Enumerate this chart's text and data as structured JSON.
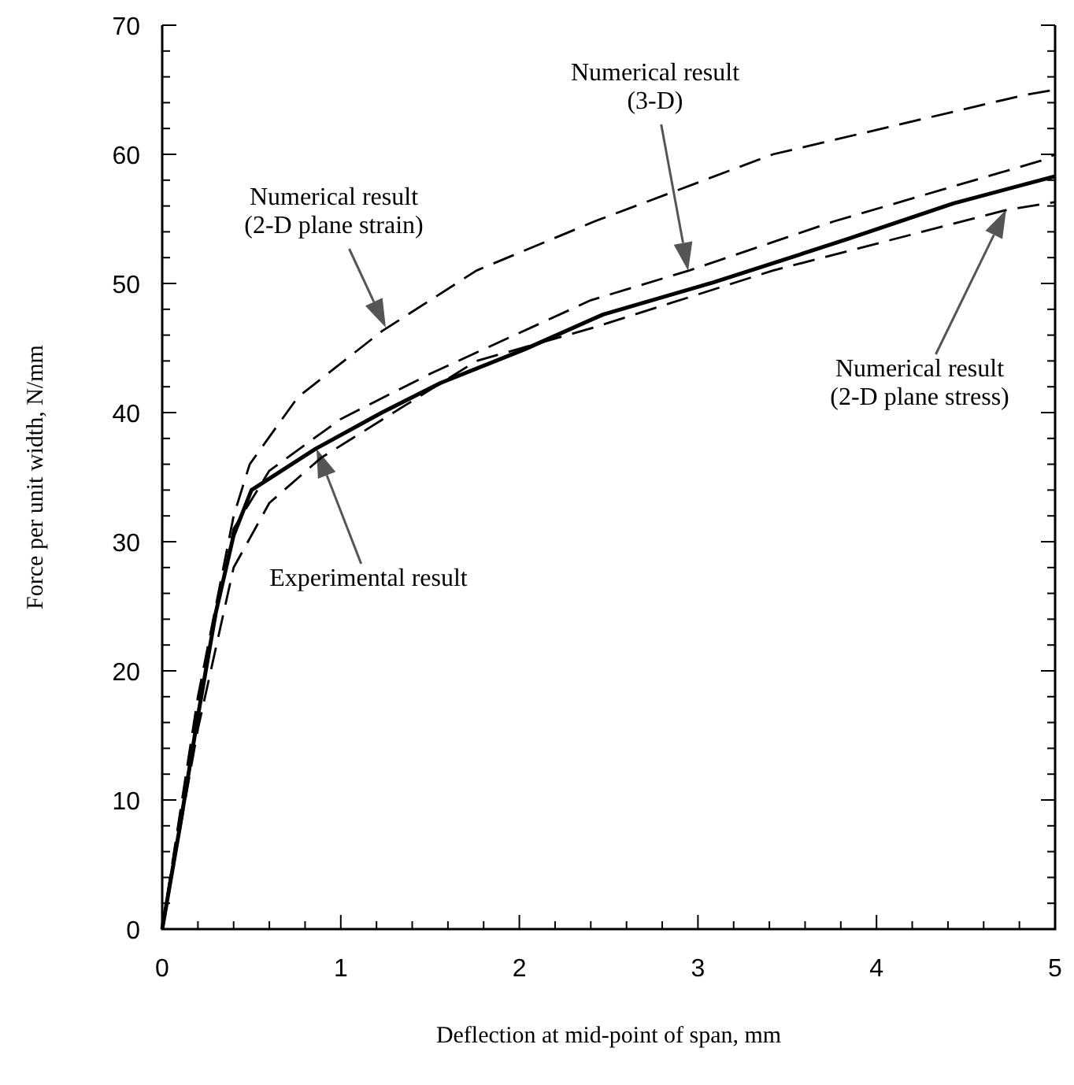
{
  "chart_data": {
    "type": "line",
    "xlabel": "Deflection at mid-point of span,  mm",
    "ylabel": "Force per unit width,  N/mm",
    "xlim": [
      0,
      5
    ],
    "ylim": [
      0,
      70
    ],
    "xticks": [
      0,
      {
        "value": 0.2,
        "label": null
      },
      {
        "value": 0.4,
        "label": null
      },
      {
        "value": 0.6,
        "label": null
      },
      {
        "value": 0.8,
        "label": null
      },
      1,
      {
        "value": 1.2,
        "label": null
      },
      {
        "value": 1.4,
        "label": null
      },
      {
        "value": 1.6,
        "label": null
      },
      {
        "value": 1.8,
        "label": null
      },
      2,
      {
        "value": 2.2,
        "label": null
      },
      {
        "value": 2.4,
        "label": null
      },
      {
        "value": 2.6,
        "label": null
      },
      {
        "value": 2.8,
        "label": null
      },
      3,
      {
        "value": 3.2,
        "label": null
      },
      {
        "value": 3.4,
        "label": null
      },
      {
        "value": 3.6,
        "label": null
      },
      {
        "value": 3.8,
        "label": null
      },
      4,
      {
        "value": 4.2,
        "label": null
      },
      {
        "value": 4.4,
        "label": null
      },
      {
        "value": 4.6,
        "label": null
      },
      {
        "value": 4.8,
        "label": null
      },
      5
    ],
    "yticks": [
      0,
      {
        "value": 2,
        "label": null
      },
      {
        "value": 4,
        "label": null
      },
      {
        "value": 6,
        "label": null
      },
      {
        "value": 8,
        "label": null
      },
      10,
      {
        "value": 12,
        "label": null
      },
      {
        "value": 14,
        "label": null
      },
      {
        "value": 16,
        "label": null
      },
      {
        "value": 18,
        "label": null
      },
      20,
      {
        "value": 22,
        "label": null
      },
      {
        "value": 24,
        "label": null
      },
      {
        "value": 26,
        "label": null
      },
      {
        "value": 28,
        "label": null
      },
      30,
      {
        "value": 32,
        "label": null
      },
      {
        "value": 34,
        "label": null
      },
      {
        "value": 36,
        "label": null
      },
      {
        "value": 38,
        "label": null
      },
      40,
      {
        "value": 42,
        "label": null
      },
      {
        "value": 44,
        "label": null
      },
      {
        "value": 46,
        "label": null
      },
      {
        "value": 48,
        "label": null
      },
      50,
      {
        "value": 52,
        "label": null
      },
      {
        "value": 54,
        "label": null
      },
      {
        "value": 56,
        "label": null
      },
      {
        "value": 58,
        "label": null
      },
      60,
      {
        "value": 62,
        "label": null
      },
      {
        "value": 64,
        "label": null
      },
      {
        "value": 66,
        "label": null
      },
      {
        "value": 68,
        "label": null
      },
      70
    ],
    "grid": false,
    "marker": "none",
    "series": [
      {
        "color": "#000000",
        "line_style": "solid",
        "x": [
          0,
          0.1,
          0.2,
          0.3,
          0.4,
          0.5,
          0.86,
          1.23,
          1.56,
          2.03,
          2.47,
          3.09,
          3.83,
          4.43,
          5
        ],
        "values": [
          0,
          8,
          16.5,
          24.5,
          30.5,
          34,
          37.2,
          40,
          42.3,
          44.9,
          47.6,
          50.1,
          53.4,
          56.2,
          58.3
        ]
      },
      {
        "color": "#000000",
        "line_style": "dashed",
        "x": [
          0,
          0.2,
          0.4,
          0.6,
          1,
          1.5,
          2.4,
          2.95,
          3.76,
          4.92,
          5
        ],
        "values": [
          0,
          17.5,
          31,
          35.5,
          39.5,
          43,
          48.7,
          51,
          54.8,
          59.5,
          60
        ]
      },
      {
        "color": "#000000",
        "line_style": "dashed",
        "x": [
          0,
          0.2,
          0.4,
          0.49,
          0.76,
          1.23,
          1.76,
          2.42,
          3.42,
          4.83,
          5
        ],
        "values": [
          0,
          18,
          32,
          36,
          41.2,
          46.3,
          51,
          54.8,
          60,
          64.6,
          65
        ]
      },
      {
        "color": "#000000",
        "line_style": "dashed",
        "x": [
          0,
          0.2,
          0.4,
          0.6,
          0.89,
          1.76,
          2.42,
          3.42,
          4.73,
          5
        ],
        "values": [
          0,
          15.5,
          28,
          33,
          36.5,
          44,
          46.6,
          51,
          55.7,
          56.3
        ]
      }
    ],
    "annotations": [
      "Numerical result\n(2-D plane strain)",
      "Numerical result\n(3-D)",
      "Experimental result",
      "Numerical result\n(2-D plane stress)"
    ]
  }
}
